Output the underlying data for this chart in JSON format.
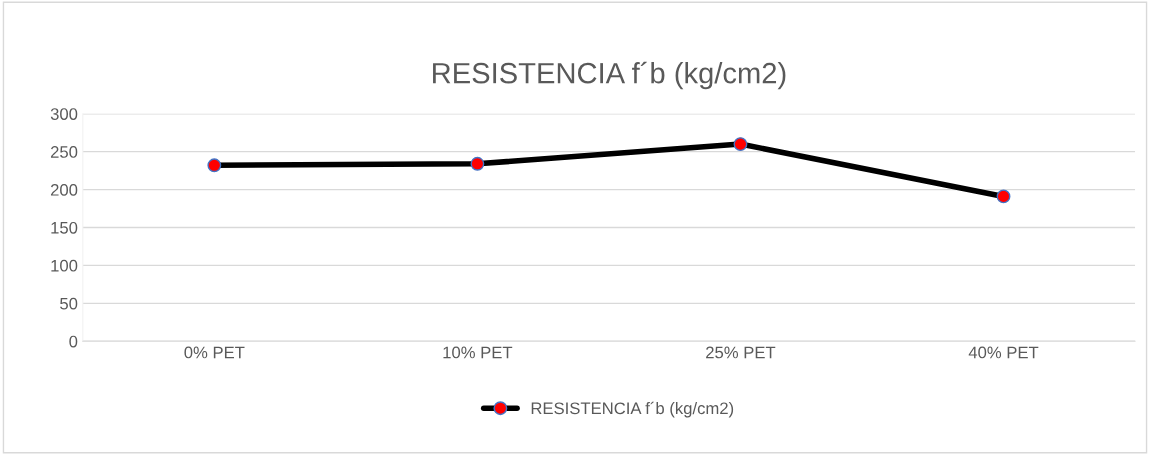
{
  "chart_data": {
    "type": "line",
    "title": "RESISTENCIA f´b (kg/cm2)",
    "categories": [
      "0% PET",
      "10% PET",
      "25% PET",
      "40% PET"
    ],
    "series": [
      {
        "name": "RESISTENCIA f´b (kg/cm2)",
        "color": "#000000",
        "colors": [
          "#ff0000",
          "#ff0000",
          "#ff0000",
          "#ff0000"
        ],
        "values": [
          232,
          234,
          260,
          191
        ]
      }
    ],
    "ylim": [
      0,
      300
    ],
    "yticks": [
      0,
      50,
      100,
      150,
      200,
      250,
      300
    ],
    "grid": "y",
    "legend": "bottom",
    "marker": "circle",
    "line_style": "solid"
  }
}
